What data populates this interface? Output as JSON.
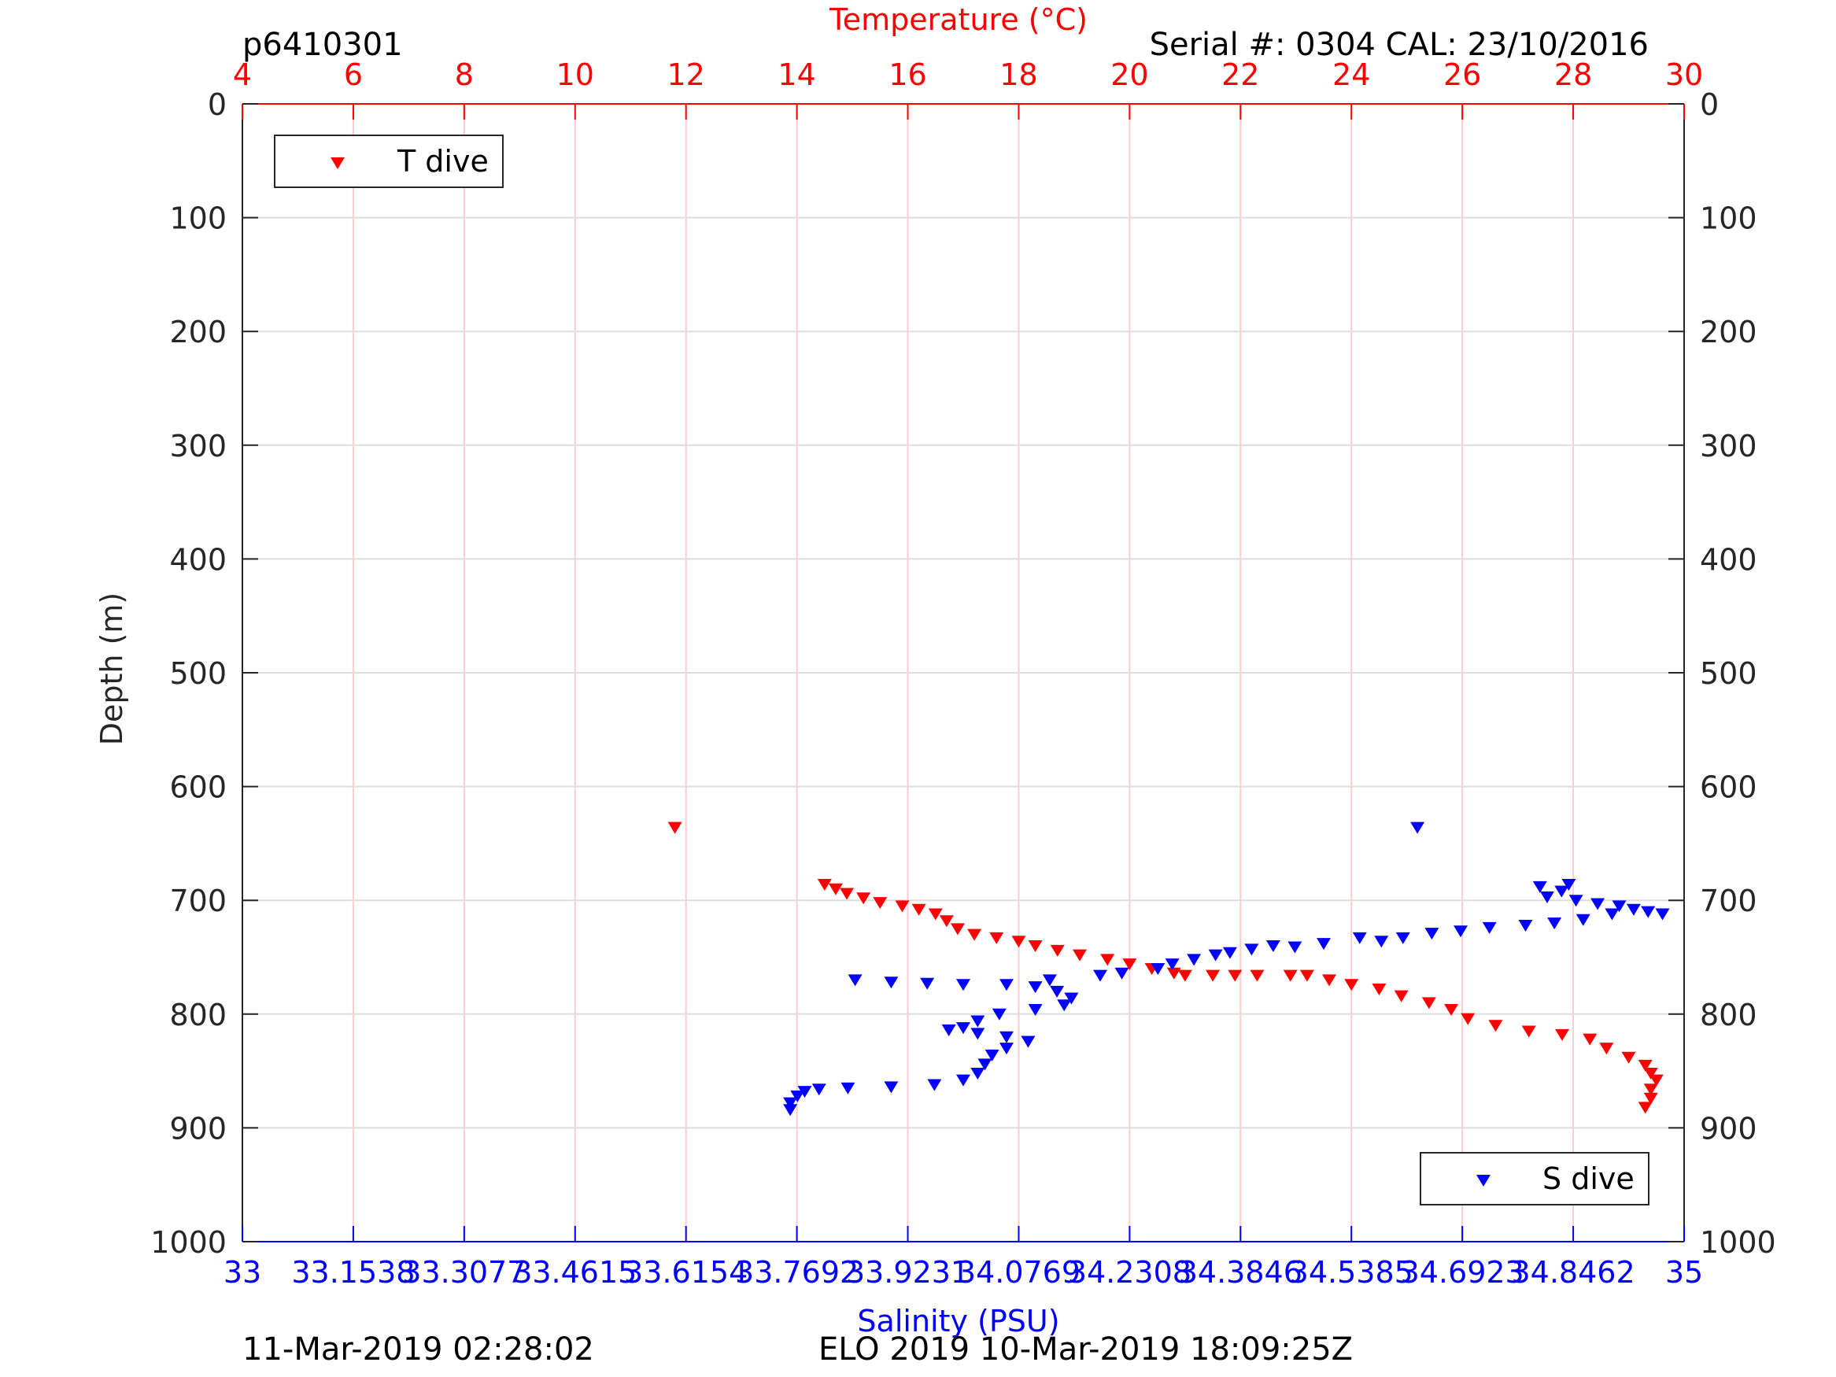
{
  "header": {
    "id_label": "p6410301",
    "serial_label": "Serial #: 0304  CAL: 23/10/2016"
  },
  "footer": {
    "timestamp_left": "11-Mar-2019 02:28:02",
    "timestamp_right": "ELO 2019 10-Mar-2019 18:09:25Z"
  },
  "chart_data": {
    "type": "scatter",
    "ylabel": "Depth (m)",
    "y_reversed": true,
    "ylim": [
      0,
      1000
    ],
    "y_ticks": [
      "0",
      "100",
      "200",
      "300",
      "400",
      "500",
      "600",
      "700",
      "800",
      "900",
      "1000"
    ],
    "top_axis": {
      "label": "Temperature (°C)",
      "lim": [
        4,
        30
      ],
      "ticks": [
        "4",
        "6",
        "8",
        "10",
        "12",
        "14",
        "16",
        "18",
        "20",
        "22",
        "24",
        "26",
        "28",
        "30"
      ],
      "color": "#ff0000"
    },
    "bottom_axis": {
      "label": "Salinity (PSU)",
      "lim": [
        33,
        35
      ],
      "ticks": [
        "33",
        "33.1538",
        "33.3077",
        "33.4615",
        "33.6154",
        "33.7692",
        "33.9231",
        "34.0769",
        "34.2308",
        "34.3846",
        "34.5385",
        "34.6923",
        "34.8462",
        "35"
      ],
      "color": "#0000ff"
    },
    "grid": true,
    "vertical_grid_color": "#ffcccc",
    "horizontal_grid_color": "#dddddd",
    "legend": [
      {
        "name": "T dive",
        "position": "top-left",
        "color": "#ff0000",
        "marker": "down-triangle"
      },
      {
        "name": "S dive",
        "position": "bottom-right",
        "color": "#0000ff",
        "marker": "down-triangle"
      }
    ],
    "series": [
      {
        "name": "T dive",
        "axis": "top",
        "color": "#ff0000",
        "points": [
          [
            11.8,
            636
          ],
          [
            14.5,
            686
          ],
          [
            14.7,
            690
          ],
          [
            14.9,
            694
          ],
          [
            15.2,
            698
          ],
          [
            15.5,
            702
          ],
          [
            15.9,
            705
          ],
          [
            16.2,
            708
          ],
          [
            16.5,
            712
          ],
          [
            16.7,
            718
          ],
          [
            16.9,
            725
          ],
          [
            17.2,
            730
          ],
          [
            17.6,
            733
          ],
          [
            18.0,
            736
          ],
          [
            18.3,
            740
          ],
          [
            18.7,
            744
          ],
          [
            19.1,
            748
          ],
          [
            19.6,
            752
          ],
          [
            20.0,
            756
          ],
          [
            20.4,
            760
          ],
          [
            20.8,
            764
          ],
          [
            21.0,
            766
          ],
          [
            21.5,
            766
          ],
          [
            21.9,
            766
          ],
          [
            22.3,
            766
          ],
          [
            22.9,
            766
          ],
          [
            23.2,
            766
          ],
          [
            23.6,
            770
          ],
          [
            24.0,
            774
          ],
          [
            24.5,
            778
          ],
          [
            24.9,
            784
          ],
          [
            25.4,
            790
          ],
          [
            25.8,
            796
          ],
          [
            26.1,
            804
          ],
          [
            26.6,
            810
          ],
          [
            27.2,
            815
          ],
          [
            27.8,
            818
          ],
          [
            28.3,
            822
          ],
          [
            28.6,
            830
          ],
          [
            29.0,
            838
          ],
          [
            29.3,
            845
          ],
          [
            29.4,
            852
          ],
          [
            29.5,
            858
          ],
          [
            29.4,
            866
          ],
          [
            29.4,
            874
          ],
          [
            29.3,
            882
          ]
        ]
      },
      {
        "name": "S dive",
        "axis": "bottom",
        "color": "#0000ff",
        "points": [
          [
            34.63,
            636
          ],
          [
            34.84,
            686
          ],
          [
            34.8,
            688
          ],
          [
            34.83,
            692
          ],
          [
            34.81,
            697
          ],
          [
            34.85,
            700
          ],
          [
            34.88,
            703
          ],
          [
            34.91,
            705
          ],
          [
            34.93,
            708
          ],
          [
            34.95,
            710
          ],
          [
            34.97,
            712
          ],
          [
            34.9,
            712
          ],
          [
            34.86,
            717
          ],
          [
            34.82,
            720
          ],
          [
            34.78,
            722
          ],
          [
            34.73,
            724
          ],
          [
            34.69,
            727
          ],
          [
            34.65,
            729
          ],
          [
            34.61,
            733
          ],
          [
            34.58,
            736
          ],
          [
            34.55,
            733
          ],
          [
            34.5,
            738
          ],
          [
            34.46,
            741
          ],
          [
            34.43,
            740
          ],
          [
            34.4,
            743
          ],
          [
            34.37,
            746
          ],
          [
            34.35,
            748
          ],
          [
            34.32,
            752
          ],
          [
            34.29,
            756
          ],
          [
            34.27,
            760
          ],
          [
            34.22,
            764
          ],
          [
            34.19,
            766
          ],
          [
            34.12,
            770
          ],
          [
            34.06,
            774
          ],
          [
            34.0,
            774
          ],
          [
            33.95,
            773
          ],
          [
            33.9,
            772
          ],
          [
            33.85,
            770
          ],
          [
            34.1,
            776
          ],
          [
            34.13,
            780
          ],
          [
            34.15,
            786
          ],
          [
            34.14,
            792
          ],
          [
            34.1,
            796
          ],
          [
            34.05,
            800
          ],
          [
            34.02,
            806
          ],
          [
            34.0,
            812
          ],
          [
            33.98,
            814
          ],
          [
            34.02,
            817
          ],
          [
            34.06,
            820
          ],
          [
            34.09,
            824
          ],
          [
            34.06,
            830
          ],
          [
            34.04,
            836
          ],
          [
            34.03,
            844
          ],
          [
            34.02,
            852
          ],
          [
            34.0,
            858
          ],
          [
            33.96,
            862
          ],
          [
            33.9,
            864
          ],
          [
            33.84,
            865
          ],
          [
            33.8,
            866
          ],
          [
            33.78,
            868
          ],
          [
            33.77,
            872
          ],
          [
            33.76,
            878
          ],
          [
            33.76,
            884
          ]
        ]
      }
    ]
  }
}
